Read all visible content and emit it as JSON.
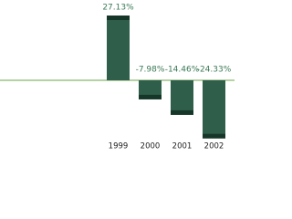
{
  "chart_data": {
    "type": "bar",
    "categories": [
      "1999",
      "2000",
      "2001",
      "2002"
    ],
    "values": [
      27.13,
      -7.98,
      -14.46,
      -24.33
    ],
    "value_labels": [
      "27.13%",
      "-7.98%",
      "-14.46%",
      "-24.33%"
    ],
    "color": "#2f5f4b",
    "cap_color": "#163629",
    "baseline_color": "#9cc483"
  }
}
